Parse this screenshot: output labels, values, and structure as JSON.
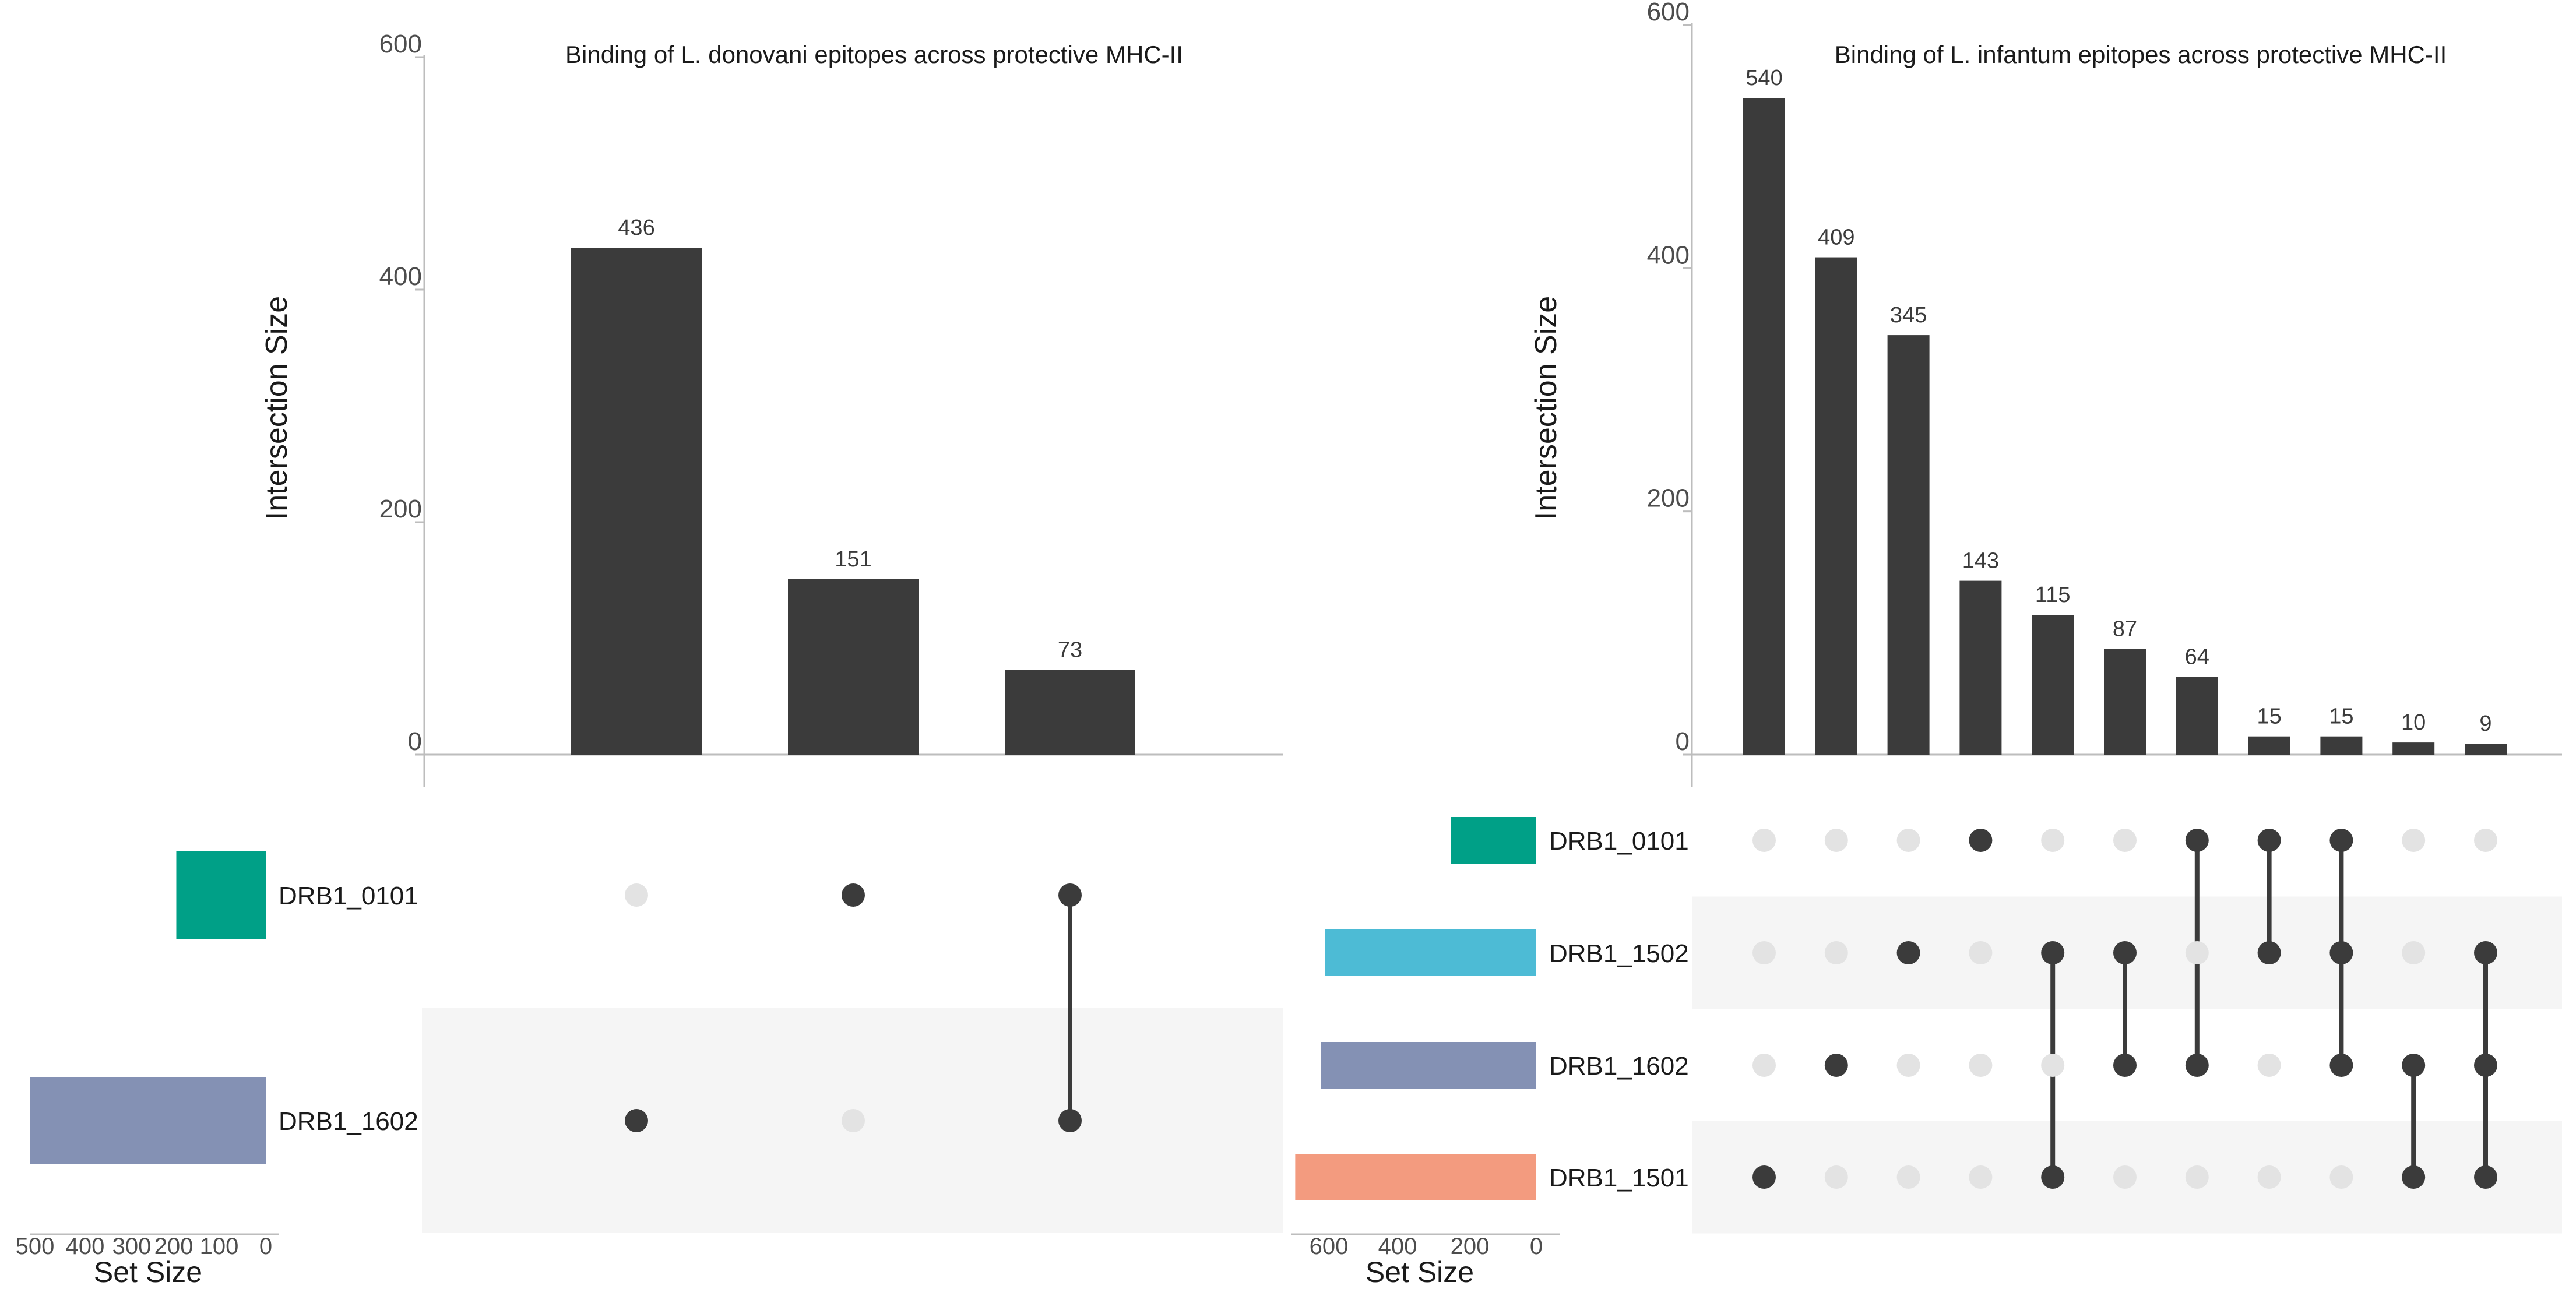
{
  "chart_data": [
    {
      "type": "upset",
      "title": "Binding of L. donovani epitopes across protective MHC-II",
      "ylabel": "Intersection Size",
      "ylim": [
        0,
        600
      ],
      "yticks": [
        "0",
        "200",
        "400",
        "600"
      ],
      "sets": [
        {
          "name": "DRB1_0101",
          "size": 190,
          "color": "#00A087"
        },
        {
          "name": "DRB1_1602",
          "size": 500,
          "color": "#8491B4"
        }
      ],
      "set_size_label": "Set Size",
      "set_size_ticks": [
        "500",
        "400",
        "300",
        "200",
        "100",
        "0"
      ],
      "set_size_tick_values": [
        500,
        400,
        300,
        200,
        100,
        0
      ],
      "set_size_max": 500,
      "intersections": [
        {
          "value": 436,
          "label": "436",
          "members": [
            "DRB1_1602"
          ]
        },
        {
          "value": 151,
          "label": "151",
          "members": [
            "DRB1_0101"
          ]
        },
        {
          "value": 73,
          "label": "73",
          "members": [
            "DRB1_0101",
            "DRB1_1602"
          ]
        }
      ]
    },
    {
      "type": "upset",
      "title": "Binding of L. infantum epitopes across protective MHC-II",
      "ylabel": "Intersection Size",
      "ylim": [
        0,
        600
      ],
      "yticks": [
        "0",
        "200",
        "400",
        "600"
      ],
      "sets": [
        {
          "name": "DRB1_0101",
          "size": 230,
          "color": "#00A087"
        },
        {
          "name": "DRB1_1502",
          "size": 570,
          "color": "#4DBBD5"
        },
        {
          "name": "DRB1_1602",
          "size": 580,
          "color": "#8491B4"
        },
        {
          "name": "DRB1_1501",
          "size": 650,
          "color": "#F39B7F"
        }
      ],
      "set_size_label": "Set Size",
      "set_size_ticks": [
        "600",
        "400",
        "200",
        "0"
      ],
      "set_size_tick_values": [
        600,
        400,
        200,
        0
      ],
      "set_size_max": 660,
      "intersections": [
        {
          "value": 540,
          "label": "540",
          "members": [
            "DRB1_1501"
          ]
        },
        {
          "value": 409,
          "label": "409",
          "members": [
            "DRB1_1602"
          ]
        },
        {
          "value": 345,
          "label": "345",
          "members": [
            "DRB1_1502"
          ]
        },
        {
          "value": 143,
          "label": "143",
          "members": [
            "DRB1_0101"
          ]
        },
        {
          "value": 115,
          "label": "115",
          "members": [
            "DRB1_1502",
            "DRB1_1501"
          ]
        },
        {
          "value": 87,
          "label": "87",
          "members": [
            "DRB1_1502",
            "DRB1_1602"
          ]
        },
        {
          "value": 64,
          "label": "64",
          "members": [
            "DRB1_0101",
            "DRB1_1602"
          ]
        },
        {
          "value": 15,
          "label": "15",
          "members": [
            "DRB1_0101",
            "DRB1_1502"
          ]
        },
        {
          "value": 15,
          "label": "15",
          "members": [
            "DRB1_0101",
            "DRB1_1502",
            "DRB1_1602"
          ]
        },
        {
          "value": 10,
          "label": "10",
          "members": [
            "DRB1_1602",
            "DRB1_1501"
          ]
        },
        {
          "value": 9,
          "label": "9",
          "members": [
            "DRB1_1502",
            "DRB1_1602",
            "DRB1_1501"
          ]
        }
      ]
    }
  ]
}
